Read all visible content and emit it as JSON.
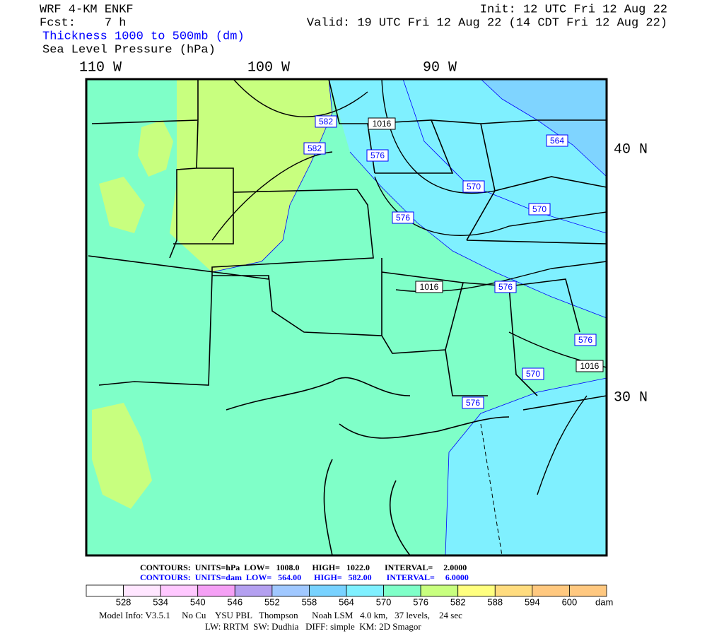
{
  "header": {
    "model": "WRF 4-KM ENKF",
    "forecast": "Fcst:    7 h",
    "field1": "Thickness 1000 to 500mb (dm)",
    "field2": "Sea Level Pressure (hPa)",
    "init": "Init: 12 UTC Fri 12 Aug 22",
    "valid": "Valid: 19 UTC Fri 12 Aug 22 (14 CDT Fri 12 Aug 22)"
  },
  "map": {
    "longitudes": [
      "110 W",
      "100 W",
      "90 W"
    ],
    "latitudes": [
      "40 N",
      "30 N"
    ],
    "contour_labels": [
      {
        "text": "582",
        "color": "#0000ff"
      },
      {
        "text": "582",
        "color": "#0000ff"
      },
      {
        "text": "576",
        "color": "#0000ff"
      },
      {
        "text": "570",
        "color": "#0000ff"
      },
      {
        "text": "564",
        "color": "#0000ff"
      },
      {
        "text": "570",
        "color": "#0000ff"
      },
      {
        "text": "576",
        "color": "#0000ff"
      },
      {
        "text": "576",
        "color": "#0000ff"
      },
      {
        "text": "576",
        "color": "#0000ff"
      },
      {
        "text": "570",
        "color": "#0000ff"
      },
      {
        "text": "576",
        "color": "#0000ff"
      },
      {
        "text": "1016",
        "color": "#000000"
      },
      {
        "text": "1016",
        "color": "#000000"
      },
      {
        "text": "1016",
        "color": "#000000"
      }
    ]
  },
  "contours": {
    "pressure": "CONTOURS:  UNITS=hPa  LOW=   1008.0      HIGH=   1022.0       INTERVAL=     2.0000",
    "thickness": "CONTOURS:  UNITS=dam  LOW=   564.00      HIGH=   582.00       INTERVAL=     6.0000"
  },
  "colorbar": {
    "labels": [
      "528",
      "534",
      "540",
      "546",
      "552",
      "558",
      "564",
      "570",
      "576",
      "582",
      "588",
      "594",
      "600"
    ],
    "unit": "dam",
    "colors": [
      "#ffffff",
      "#ffe6ff",
      "#ffc8ff",
      "#f5a0f5",
      "#b4a0f0",
      "#a0c8ff",
      "#78d2ff",
      "#7ff0ff",
      "#7fffc8",
      "#c8ff7f",
      "#ffff7f",
      "#ffdc7f",
      "#ffc87f",
      "#ffc880"
    ]
  },
  "footer": {
    "line1": "Model Info: V3.5.1     No Cu    YSU PBL   Thompson      Noah LSM   4.0 km,   37 levels,    24 sec",
    "line2": "LW: RRTM  SW: Dudhia   DIFF: simple  KM: 2D Smagor"
  }
}
